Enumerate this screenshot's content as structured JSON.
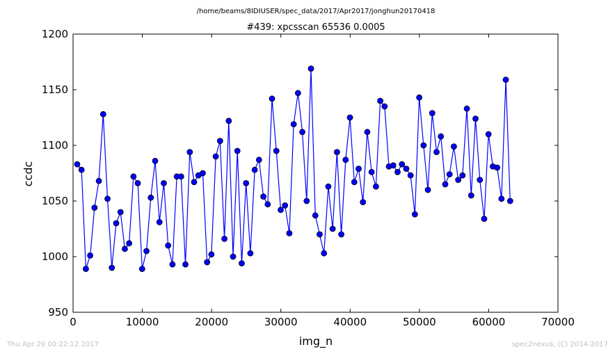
{
  "path_title": "/home/beams/8IDIUSER/spec_data/2017/Apr2017/jonghun20170418",
  "footer_left": "Thu Apr 20 00:22:12 2017",
  "footer_right": "spec2nexus, (C) 2014-2017",
  "chart_data": {
    "type": "line",
    "title": "#439: xpcsscan 65536 0.0005",
    "xlabel": "img_n",
    "ylabel": "ccdc",
    "xlim": [
      0,
      70000
    ],
    "ylim": [
      950,
      1200
    ],
    "xticks": [
      0,
      10000,
      20000,
      30000,
      40000,
      50000,
      60000,
      70000
    ],
    "yticks": [
      950,
      1000,
      1050,
      1100,
      1150,
      1200
    ],
    "line_color": "#0000ff",
    "grid": false,
    "x_start": 600,
    "x_step": 625,
    "y": [
      1083,
      1078,
      989,
      1001,
      1044,
      1068,
      1128,
      1052,
      990,
      1030,
      1040,
      1007,
      1012,
      1072,
      1066,
      989,
      1005,
      1053,
      1086,
      1031,
      1066,
      1010,
      993,
      1072,
      1072,
      993,
      1094,
      1067,
      1073,
      1075,
      995,
      1002,
      1090,
      1104,
      1016,
      1122,
      1000,
      1095,
      994,
      1066,
      1003,
      1078,
      1087,
      1054,
      1047,
      1142,
      1095,
      1042,
      1046,
      1021,
      1119,
      1147,
      1112,
      1050,
      1169,
      1037,
      1020,
      1003,
      1063,
      1025,
      1094,
      1020,
      1087,
      1125,
      1067,
      1079,
      1049,
      1112,
      1076,
      1063,
      1140,
      1135,
      1081,
      1082,
      1076,
      1083,
      1079,
      1073,
      1038,
      1143,
      1100,
      1060,
      1129,
      1094,
      1108,
      1065,
      1074,
      1099,
      1069,
      1073,
      1133,
      1055,
      1124,
      1069,
      1034,
      1110,
      1081,
      1080,
      1052,
      1159,
      1050
    ]
  }
}
